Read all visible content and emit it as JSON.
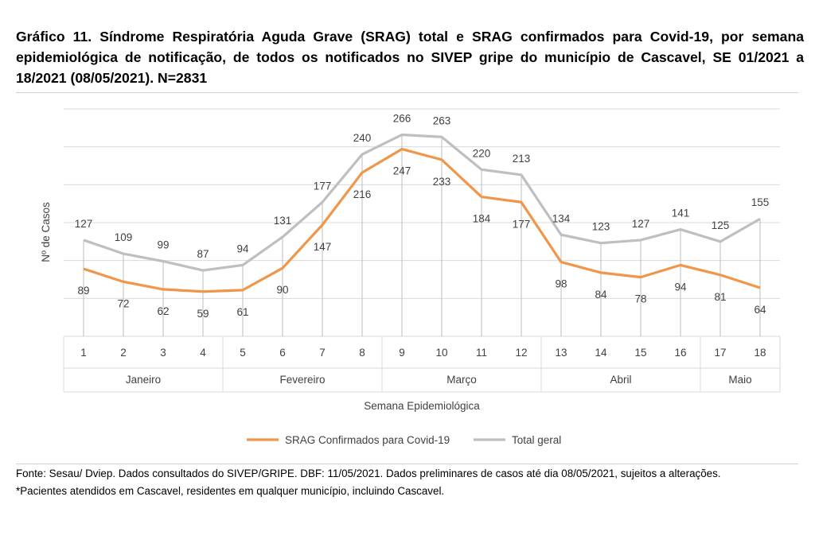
{
  "title": {
    "line1": "Gráfico 11. Síndrome Respiratória Aguda Grave (SRAG) total e SRAG confirmados para Covid-19, por",
    "line2": "semana epidemiológica de notificação, de todos os notificados no SIVEP gripe do município de Cascavel,",
    "line3": "SE 01/2021 a 18/2021 (08/05/2021).  N=2831"
  },
  "chart_data": {
    "type": "line",
    "xlabel": "Semana Epidemiológica",
    "ylabel": "Nº de Casos",
    "x": [
      "1",
      "2",
      "3",
      "4",
      "5",
      "6",
      "7",
      "8",
      "9",
      "10",
      "11",
      "12",
      "13",
      "14",
      "15",
      "16",
      "17",
      "18"
    ],
    "month_groups": [
      {
        "label": "Janeiro",
        "weeks": 4
      },
      {
        "label": "Fevereiro",
        "weeks": 4
      },
      {
        "label": "Março",
        "weeks": 4
      },
      {
        "label": "Abril",
        "weeks": 4
      },
      {
        "label": "Maio",
        "weeks": 2
      }
    ],
    "ylim": [
      0,
      300
    ],
    "grid": true,
    "legend_position": "bottom",
    "series": [
      {
        "name": "SRAG Confirmados para Covid-19",
        "color": "#f0964a",
        "values": [
          89,
          72,
          62,
          59,
          61,
          90,
          147,
          216,
          247,
          233,
          184,
          177,
          98,
          84,
          78,
          94,
          81,
          64
        ]
      },
      {
        "name": "Total geral",
        "color": "#bfbfbf",
        "values": [
          127,
          109,
          99,
          87,
          94,
          131,
          177,
          240,
          266,
          263,
          220,
          213,
          134,
          123,
          127,
          141,
          125,
          155
        ]
      }
    ]
  },
  "footer": {
    "source": "Fonte: Sesau/ Dviep. Dados consultados do SIVEP/GRIPE. DBF: 11/05/2021. Dados preliminares de casos até dia 08/05/2021, sujeitos a alterações.",
    "note": "*Pacientes atendidos em Cascavel, residentes em qualquer município, incluindo Cascavel."
  }
}
